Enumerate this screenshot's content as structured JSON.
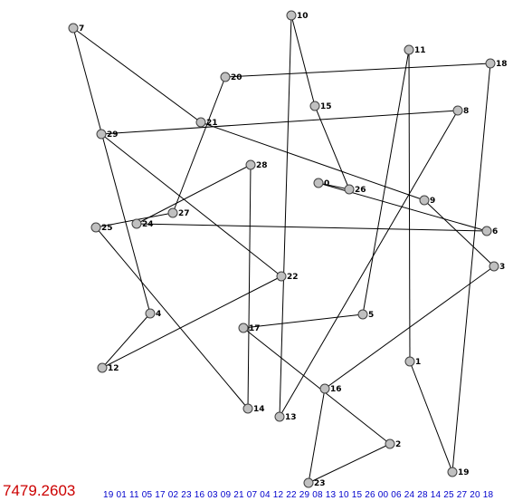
{
  "score": "7479.2603",
  "sequence": "19 01 11 05 17 02 23 16 03 09 21 07 04 12 22 29 08 13 10 15 26 00 06 24 28 14 25 27 20 18",
  "colors": {
    "score": "#cc0000",
    "sequence": "#0000cc",
    "node_fill": "#c0c0c0"
  },
  "nodes": [
    {
      "id": "0",
      "label": "0"
    },
    {
      "id": "1",
      "label": "1"
    },
    {
      "id": "2",
      "label": "2"
    },
    {
      "id": "3",
      "label": "3"
    },
    {
      "id": "4",
      "label": "4"
    },
    {
      "id": "5",
      "label": "5"
    },
    {
      "id": "6",
      "label": "6"
    },
    {
      "id": "7",
      "label": "7"
    },
    {
      "id": "8",
      "label": "8"
    },
    {
      "id": "9",
      "label": "9"
    },
    {
      "id": "10",
      "label": "10"
    },
    {
      "id": "11",
      "label": "11"
    },
    {
      "id": "12",
      "label": "12"
    },
    {
      "id": "13",
      "label": "13"
    },
    {
      "id": "14",
      "label": "14"
    },
    {
      "id": "15",
      "label": "15"
    },
    {
      "id": "16",
      "label": "16"
    },
    {
      "id": "17",
      "label": "17"
    },
    {
      "id": "18",
      "label": "18"
    },
    {
      "id": "19",
      "label": "19"
    },
    {
      "id": "20",
      "label": "20"
    },
    {
      "id": "21",
      "label": "21"
    },
    {
      "id": "22",
      "label": "22"
    },
    {
      "id": "23",
      "label": "23"
    },
    {
      "id": "24",
      "label": "24"
    },
    {
      "id": "25",
      "label": "25"
    },
    {
      "id": "26",
      "label": "26"
    },
    {
      "id": "27",
      "label": "27"
    },
    {
      "id": "28",
      "label": "28"
    },
    {
      "id": "29",
      "label": "29"
    }
  ],
  "edges": [
    [
      "19",
      "1"
    ],
    [
      "1",
      "11"
    ],
    [
      "11",
      "5"
    ],
    [
      "5",
      "17"
    ],
    [
      "17",
      "2"
    ],
    [
      "2",
      "23"
    ],
    [
      "23",
      "16"
    ],
    [
      "16",
      "3"
    ],
    [
      "3",
      "9"
    ],
    [
      "9",
      "21"
    ],
    [
      "21",
      "7"
    ],
    [
      "7",
      "4"
    ],
    [
      "4",
      "12"
    ],
    [
      "12",
      "22"
    ],
    [
      "22",
      "29"
    ],
    [
      "29",
      "8"
    ],
    [
      "8",
      "13"
    ],
    [
      "13",
      "10"
    ],
    [
      "10",
      "15"
    ],
    [
      "15",
      "26"
    ],
    [
      "26",
      "0"
    ],
    [
      "0",
      "6"
    ],
    [
      "6",
      "24"
    ],
    [
      "24",
      "28"
    ],
    [
      "28",
      "14"
    ],
    [
      "14",
      "25"
    ],
    [
      "25",
      "27"
    ],
    [
      "27",
      "20"
    ],
    [
      "20",
      "18"
    ],
    [
      "18",
      "19"
    ]
  ]
}
